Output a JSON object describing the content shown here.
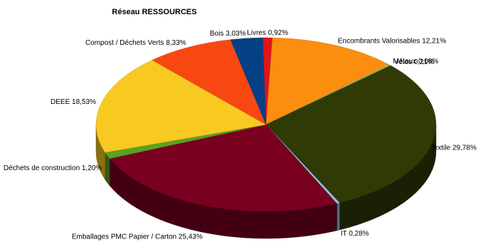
{
  "chart_data": {
    "type": "pie",
    "title": "Réseau RESSOURCES",
    "three_d": true,
    "legend": "none",
    "slices": [
      {
        "label": "Livres 0,92%",
        "value": 0.92,
        "color": "#e0141c"
      },
      {
        "label": "Encombrants Valorisables 12,21%",
        "value": 12.21,
        "color": "#fb8e0f"
      },
      {
        "label": "Métaux 0,08%",
        "value": 0.08,
        "color": "#c6c6c6"
      },
      {
        "label": "Vélos 0,21%",
        "value": 0.21,
        "color": "#a5b22d"
      },
      {
        "label": "Textile 29,78%",
        "value": 29.78,
        "color": "#303a05"
      },
      {
        "label": "IT 0,28%",
        "value": 0.28,
        "color": "#88c8ee"
      },
      {
        "label": "Emballages PMC Papier / Carton 25,43%",
        "value": 25.43,
        "color": "#7a0020"
      },
      {
        "label": "Déchets de construction 1,20%",
        "value": 1.2,
        "color": "#5aa11e"
      },
      {
        "label": "DEEE 18,53%",
        "value": 18.53,
        "color": "#f8c921"
      },
      {
        "label": "Compost / Déchets Verts 8,33%",
        "value": 8.33,
        "color": "#f94711"
      },
      {
        "label": "Bois 3,03%",
        "value": 3.03,
        "color": "#034084"
      }
    ]
  }
}
